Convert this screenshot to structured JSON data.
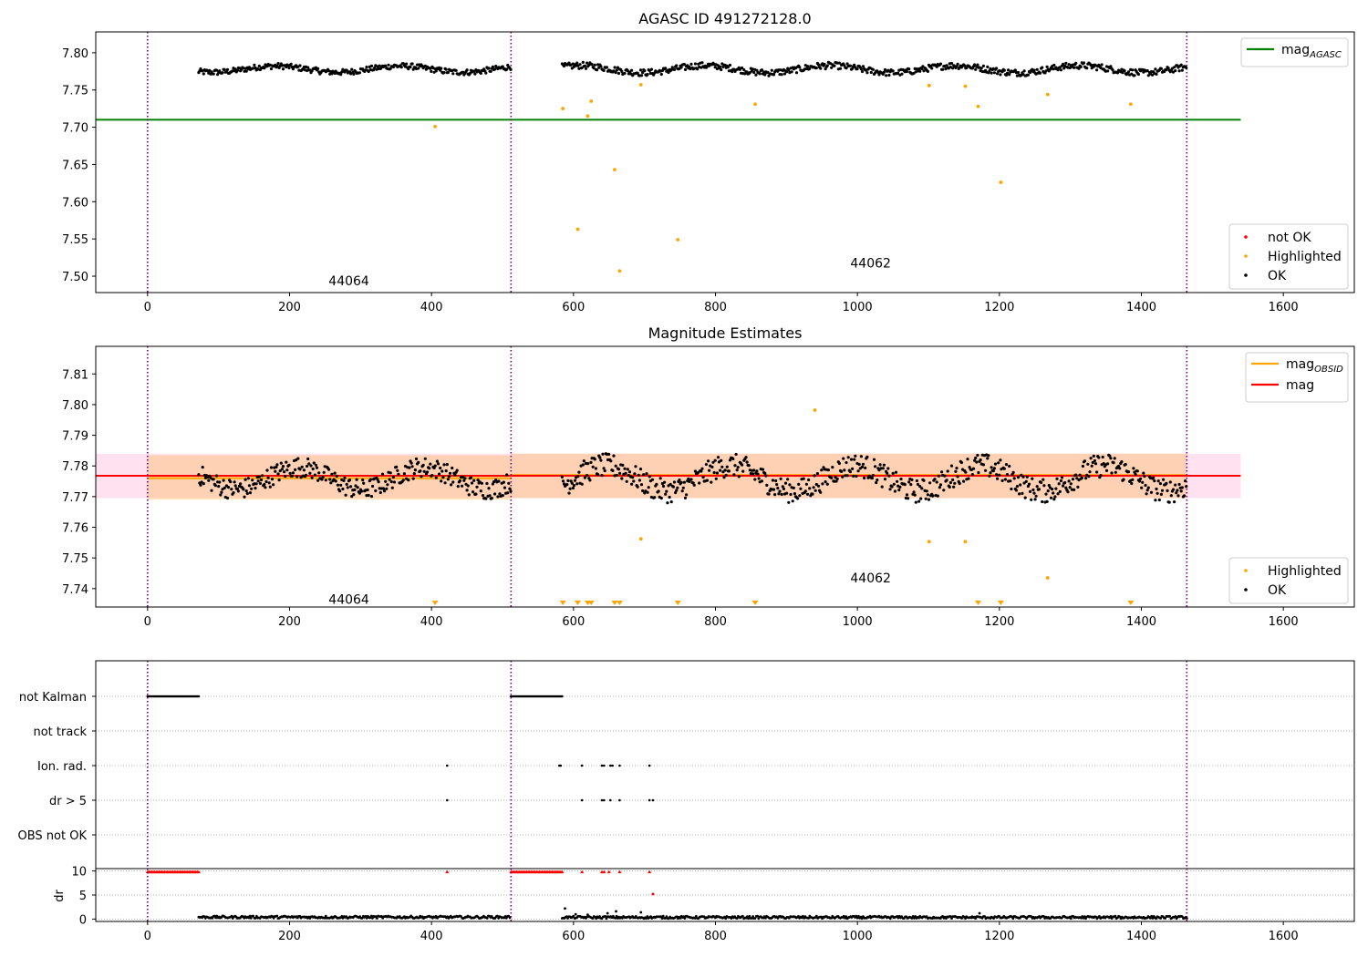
{
  "colors": {
    "ok": "#000000",
    "highlighted": "#ffa500",
    "not_ok": "#ff0000",
    "mag_agasc": "#008000",
    "mag_obsid": "#ffa500",
    "mag": "#ff0000",
    "obs_boundary": "#800080",
    "band_obsid": "#ffa500",
    "band_mag": "#ff69b4"
  },
  "chart_data": [
    {
      "type": "scatter",
      "title": "AGASC ID 491272128.0",
      "xlim": [
        -73,
        1700
      ],
      "ylim": [
        7.478,
        7.828
      ],
      "xticks": [
        0,
        200,
        400,
        600,
        800,
        1000,
        1200,
        1400,
        1600
      ],
      "yticks": [
        7.5,
        7.55,
        7.6,
        7.65,
        7.7,
        7.75,
        7.8
      ],
      "ytick_labels": [
        "7.50",
        "7.55",
        "7.60",
        "7.65",
        "7.70",
        "7.75",
        "7.80"
      ],
      "obs_boundaries": [
        0,
        512,
        1464
      ],
      "obs_labels": [
        {
          "text": "44064",
          "x": 255,
          "y": 7.494
        },
        {
          "text": "44062",
          "x": 990,
          "y": 7.518
        }
      ],
      "mag_agasc": {
        "value": 7.71,
        "x_range": [
          -73,
          1540
        ]
      },
      "legend_lines": [
        {
          "label": "mag",
          "sub": "AGASC",
          "color_key": "mag_agasc"
        }
      ],
      "legend_points": [
        "not OK",
        "Highlighted",
        "OK"
      ],
      "ok_segments": [
        {
          "x": [
            72,
            512
          ],
          "mean": 7.778,
          "amp": 0.007
        },
        {
          "x": [
            584,
            1464
          ],
          "mean": 7.778,
          "amp": 0.008
        }
      ],
      "highlighted_points": [
        {
          "x": 405,
          "y": 7.701
        },
        {
          "x": 585,
          "y": 7.725
        },
        {
          "x": 606,
          "y": 7.563
        },
        {
          "x": 620,
          "y": 7.715
        },
        {
          "x": 625,
          "y": 7.735
        },
        {
          "x": 658,
          "y": 7.643
        },
        {
          "x": 665,
          "y": 7.507
        },
        {
          "x": 695,
          "y": 7.757
        },
        {
          "x": 747,
          "y": 7.549
        },
        {
          "x": 856,
          "y": 7.731
        },
        {
          "x": 1101,
          "y": 7.756
        },
        {
          "x": 1152,
          "y": 7.755
        },
        {
          "x": 1170,
          "y": 7.728
        },
        {
          "x": 1202,
          "y": 7.626
        },
        {
          "x": 1268,
          "y": 7.744
        },
        {
          "x": 1385,
          "y": 7.731
        }
      ]
    },
    {
      "type": "scatter",
      "title": "Magnitude Estimates",
      "xlim": [
        -73,
        1700
      ],
      "ylim": [
        7.734,
        7.819
      ],
      "xticks": [
        0,
        200,
        400,
        600,
        800,
        1000,
        1200,
        1400,
        1600
      ],
      "yticks": [
        7.74,
        7.75,
        7.76,
        7.77,
        7.78,
        7.79,
        7.8,
        7.81
      ],
      "ytick_labels": [
        "7.74",
        "7.75",
        "7.76",
        "7.77",
        "7.78",
        "7.79",
        "7.80",
        "7.81"
      ],
      "obs_boundaries": [
        0,
        512,
        1464
      ],
      "obs_labels": [
        {
          "text": "44064",
          "x": 255,
          "y": 7.7365
        },
        {
          "text": "44062",
          "x": 990,
          "y": 7.7435
        }
      ],
      "mag": {
        "value": 7.7768,
        "band": [
          7.7695,
          7.784
        ],
        "x_range": [
          -73,
          1540
        ]
      },
      "mag_obsid": [
        {
          "value": 7.776,
          "band": [
            7.769,
            7.7835
          ],
          "x_range": [
            0,
            512
          ]
        },
        {
          "value": 7.777,
          "band": [
            7.7695,
            7.784
          ],
          "x_range": [
            512,
            1464
          ]
        }
      ],
      "legend_lines": [
        {
          "label": "mag",
          "sub": "OBSID",
          "color_key": "mag_obsid"
        },
        {
          "label": "mag",
          "sub": "",
          "color_key": "mag"
        }
      ],
      "legend_points": [
        "Highlighted",
        "OK"
      ],
      "ok_segments": [
        {
          "x": [
            72,
            512
          ],
          "mean": 7.776,
          "amp": 0.006
        },
        {
          "x": [
            584,
            1464
          ],
          "mean": 7.776,
          "amp": 0.007
        }
      ],
      "highlighted_points": [
        {
          "x": 695,
          "y": 7.7562
        },
        {
          "x": 940,
          "y": 7.7982
        },
        {
          "x": 1101,
          "y": 7.7553
        },
        {
          "x": 1152,
          "y": 7.7553
        },
        {
          "x": 1268,
          "y": 7.7435
        }
      ],
      "below_range_markers": [
        405,
        585,
        606,
        620,
        625,
        658,
        665,
        747,
        856,
        1170,
        1202,
        1385
      ]
    },
    {
      "type": "scatter",
      "title": "",
      "xlim": [
        -73,
        1700
      ],
      "xticks": [
        0,
        200,
        400,
        600,
        800,
        1000,
        1200,
        1400,
        1600
      ],
      "obs_boundaries": [
        0,
        512,
        1464
      ],
      "flag_rows": [
        "not Kalman",
        "not track",
        "Ion. rad.",
        "dr > 5",
        "OBS not OK"
      ],
      "flags": {
        "not Kalman": {
          "ranges": [
            [
              0,
              72
            ],
            [
              512,
              584
            ]
          ],
          "points": []
        },
        "not track": {
          "ranges": [],
          "points": []
        },
        "Ion. rad.": {
          "ranges": [],
          "points": [
            422,
            580,
            582,
            612,
            640,
            643,
            652,
            655,
            665,
            707
          ]
        },
        "dr > 5": {
          "ranges": [],
          "points": [
            422,
            612,
            640,
            643,
            652,
            665,
            707,
            712
          ]
        },
        "OBS not OK": {
          "ranges": [],
          "points": []
        }
      },
      "dr": {
        "ylabel": "dr",
        "yticks": [
          0,
          5,
          10
        ],
        "ytick_labels": [
          "0",
          "5",
          "10"
        ],
        "ylim": [
          -0.5,
          10.5
        ],
        "clipped_ranges": [
          [
            0,
            72
          ],
          [
            512,
            584
          ]
        ],
        "clipped_points": [
          422,
          612,
          640,
          643,
          650,
          665,
          707
        ],
        "red_points": [
          {
            "x": 712,
            "y": 5.2
          }
        ],
        "ok_segments": [
          {
            "x": [
              72,
              512
            ],
            "mean": 0.4,
            "amp": 0.25
          },
          {
            "x": [
              584,
              1464
            ],
            "mean": 0.35,
            "amp": 0.25
          }
        ],
        "extra_points": [
          {
            "x": 588,
            "y": 2.2
          },
          {
            "x": 603,
            "y": 1.0
          },
          {
            "x": 620,
            "y": 0.9
          },
          {
            "x": 648,
            "y": 1.2
          },
          {
            "x": 660,
            "y": 1.6
          },
          {
            "x": 695,
            "y": 1.4
          },
          {
            "x": 1172,
            "y": 1.2
          }
        ]
      }
    }
  ]
}
